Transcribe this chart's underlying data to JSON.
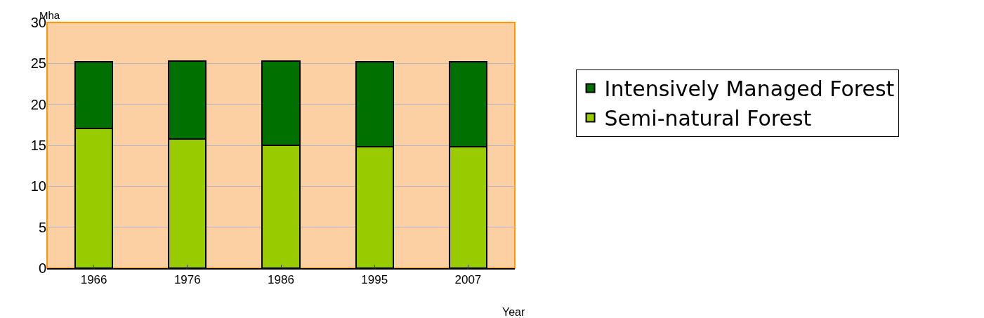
{
  "chart_data": {
    "type": "bar",
    "stacked": true,
    "xlabel": "Year",
    "ylabel": "Mha",
    "categories": [
      "1966",
      "1976",
      "1986",
      "1995",
      "2007"
    ],
    "series": [
      {
        "name": "Semi-natural Forest",
        "color": "#99cc00",
        "values": [
          17.1,
          15.8,
          15.0,
          14.8,
          14.8
        ]
      },
      {
        "name": "Intensively Managed Forest",
        "color": "#007000",
        "values": [
          8.1,
          9.5,
          10.3,
          10.4,
          10.4
        ]
      }
    ],
    "ylim": [
      0,
      30
    ],
    "yticks": [
      0,
      5,
      10,
      15,
      20,
      25,
      30
    ],
    "grid": "y",
    "legend": "right"
  }
}
